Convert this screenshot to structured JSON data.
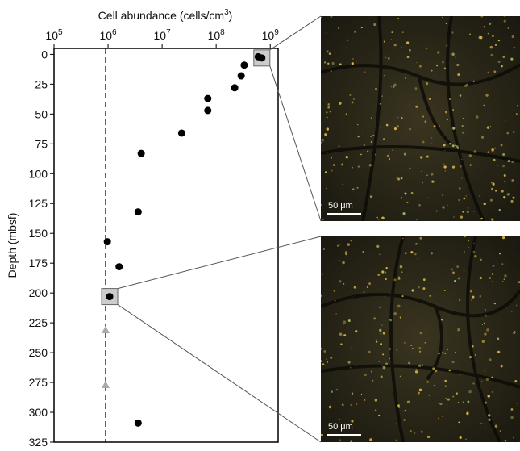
{
  "chart_data": {
    "type": "scatter",
    "title": "Cell abundance (cells/cm",
    "title_sup": "3",
    "title_end": ")",
    "y_label": "Depth (mbsf)",
    "xlog": true,
    "invert_y": true,
    "xlim": [
      100000,
      1400000000
    ],
    "ylim": [
      -5,
      325
    ],
    "xticks": [
      {
        "value": 100000,
        "label": "10",
        "sup": "5"
      },
      {
        "value": 1000000,
        "label": "10",
        "sup": "6"
      },
      {
        "value": 10000000,
        "label": "10",
        "sup": "7"
      },
      {
        "value": 100000000,
        "label": "10",
        "sup": "8"
      },
      {
        "value": 1000000000,
        "label": "10",
        "sup": "9"
      }
    ],
    "yticks": [
      0,
      25,
      50,
      75,
      100,
      125,
      150,
      175,
      200,
      225,
      250,
      275,
      300,
      325
    ],
    "detection_limit": 900000,
    "series": [
      {
        "marker": "circle",
        "color": "#000000",
        "x": [
          600000000,
          700000000,
          330000000,
          290000000,
          220000000,
          70000000,
          70000000,
          23000000,
          4100000,
          3600000,
          970000,
          1600000,
          1070000,
          3600000
        ],
        "values": [
          2,
          3,
          9,
          18,
          28,
          37,
          47,
          66,
          83,
          132,
          157,
          178,
          203,
          309
        ]
      },
      {
        "marker": "triangle",
        "color": "#aaaaaa",
        "x": [
          900000,
          900000
        ],
        "values": [
          231,
          277
        ]
      }
    ],
    "zoom_depths": [
      3,
      203
    ],
    "images": [
      {
        "scale_label": "50 μm"
      },
      {
        "scale_label": "50 μm"
      }
    ]
  }
}
